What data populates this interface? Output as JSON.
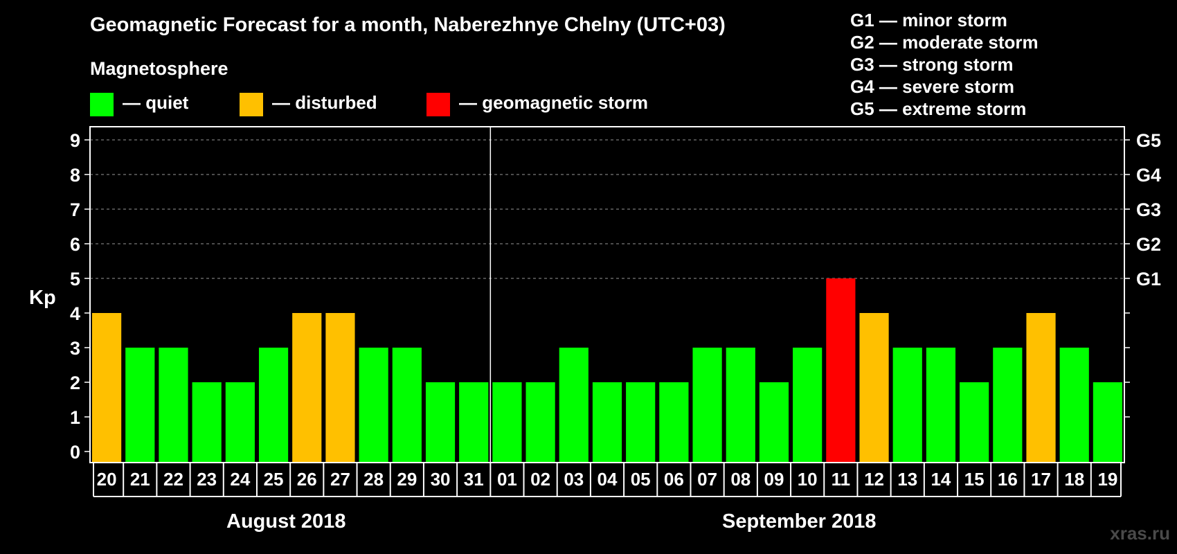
{
  "title": "Geomagnetic Forecast for a month, Naberezhnye Chelny (UTC+03)",
  "legend": {
    "heading": "Magnetosphere",
    "items": [
      {
        "label": "— quiet",
        "color": "#00ff00"
      },
      {
        "label": "— disturbed",
        "color": "#ffc000"
      },
      {
        "label": "— geomagnetic storm",
        "color": "#ff0000"
      }
    ]
  },
  "storm_levels": [
    "G1 — minor storm",
    "G2 — moderate storm",
    "G3 — strong storm",
    "G4 — severe storm",
    "G5 — extreme storm"
  ],
  "months": [
    "August 2018",
    "September 2018"
  ],
  "footer": "xras.ru",
  "chart_data": {
    "type": "bar",
    "title": "Geomagnetic Forecast for a month, Naberezhnye Chelny (UTC+03)",
    "ylabel": "Kp",
    "ylim": [
      0,
      9
    ],
    "yticks": [
      0,
      1,
      2,
      3,
      4,
      5,
      6,
      7,
      8,
      9
    ],
    "right_axis_labels": [
      {
        "kp": 5,
        "label": "G1"
      },
      {
        "kp": 6,
        "label": "G2"
      },
      {
        "kp": 7,
        "label": "G3"
      },
      {
        "kp": 8,
        "label": "G4"
      },
      {
        "kp": 9,
        "label": "G5"
      }
    ],
    "categories": [
      "20",
      "21",
      "22",
      "23",
      "24",
      "25",
      "26",
      "27",
      "28",
      "29",
      "30",
      "31",
      "01",
      "02",
      "03",
      "04",
      "05",
      "06",
      "07",
      "08",
      "09",
      "10",
      "11",
      "12",
      "13",
      "14",
      "15",
      "16",
      "17",
      "18",
      "19"
    ],
    "values": [
      4,
      3,
      3,
      2,
      2,
      3,
      4,
      4,
      3,
      3,
      2,
      2,
      2,
      2,
      3,
      2,
      2,
      2,
      3,
      3,
      2,
      3,
      5,
      4,
      3,
      3,
      2,
      3,
      4,
      3,
      2
    ],
    "status": [
      "disturbed",
      "quiet",
      "quiet",
      "quiet",
      "quiet",
      "quiet",
      "disturbed",
      "disturbed",
      "quiet",
      "quiet",
      "quiet",
      "quiet",
      "quiet",
      "quiet",
      "quiet",
      "quiet",
      "quiet",
      "quiet",
      "quiet",
      "quiet",
      "quiet",
      "quiet",
      "geomagnetic storm",
      "disturbed",
      "quiet",
      "quiet",
      "quiet",
      "quiet",
      "disturbed",
      "quiet",
      "quiet"
    ],
    "month_split_after": "31",
    "colors": {
      "quiet": "#00ff00",
      "disturbed": "#ffc000",
      "geomagnetic storm": "#ff0000"
    }
  }
}
